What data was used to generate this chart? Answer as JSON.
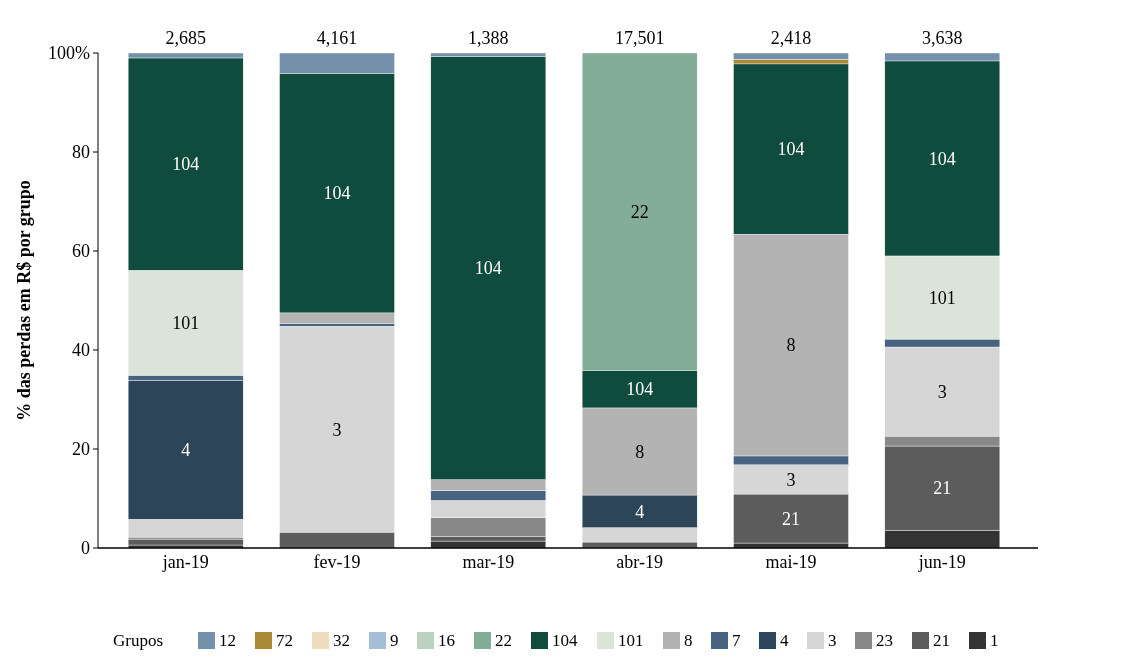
{
  "chart_data": {
    "type": "bar",
    "stacked": true,
    "ylabel": "% das perdas em R$ por grupo",
    "legend_title": "Grupos",
    "legend": "bottom",
    "grid": false,
    "categories": [
      "jan-19",
      "fev-19",
      "mar-19",
      "abr-19",
      "mai-19",
      "jun-19"
    ],
    "ylim": [
      0,
      100
    ],
    "yticks": [
      0,
      20,
      40,
      60,
      80,
      {
        "value": 100,
        "label": "100%"
      }
    ],
    "series": [
      {
        "name": "1",
        "color": "#333333",
        "values": [
          0.6,
          0,
          1.4,
          0,
          1.0,
          3.6
        ]
      },
      {
        "name": "21",
        "color": "#5c5c5c",
        "values": [
          1.2,
          3.2,
          0.9,
          1.2,
          9.9,
          17.0
        ]
      },
      {
        "name": "23",
        "color": "#888888",
        "values": [
          0.4,
          0,
          3.8,
          0,
          0,
          2.0
        ]
      },
      {
        "name": "3",
        "color": "#d6d6d6",
        "values": [
          3.6,
          41.6,
          3.5,
          2.9,
          5.9,
          18.0
        ]
      },
      {
        "name": "4",
        "color": "#2c4558",
        "values": [
          28.1,
          0,
          0,
          6.6,
          0,
          0
        ]
      },
      {
        "name": "7",
        "color": "#476380",
        "values": [
          1.0,
          0.6,
          2.0,
          0,
          1.8,
          1.6
        ]
      },
      {
        "name": "8",
        "color": "#b3b3b3",
        "values": [
          0,
          2.1,
          2.2,
          17.6,
          44.8,
          0
        ]
      },
      {
        "name": "101",
        "color": "#dce3d8",
        "values": [
          21.2,
          0,
          0,
          0,
          0,
          16.8
        ]
      },
      {
        "name": "104",
        "color": "#0f4c3d",
        "values": [
          42.9,
          48.4,
          85.5,
          7.6,
          34.4,
          39.4
        ]
      },
      {
        "name": "22",
        "color": "#84ad98",
        "values": [
          0,
          0,
          0,
          64.1,
          0,
          0
        ]
      },
      {
        "name": "16",
        "color": "#bcd1c0",
        "values": [
          0,
          0,
          0,
          0,
          0,
          0
        ]
      },
      {
        "name": "9",
        "color": "#a5bdd6",
        "values": [
          0,
          0,
          0,
          0,
          0,
          0
        ]
      },
      {
        "name": "32",
        "color": "#efdcbd",
        "values": [
          0,
          0,
          0,
          0,
          0,
          0
        ]
      },
      {
        "name": "72",
        "color": "#a98a35",
        "values": [
          0,
          0,
          0,
          0,
          0.9,
          0
        ]
      },
      {
        "name": "12",
        "color": "#7590aa",
        "values": [
          1.0,
          4.1,
          0.7,
          0,
          1.3,
          1.6
        ]
      }
    ],
    "annotations": [
      "2,685",
      "4,161",
      "1,388",
      "17,501",
      "2,418",
      "3,638"
    ]
  }
}
